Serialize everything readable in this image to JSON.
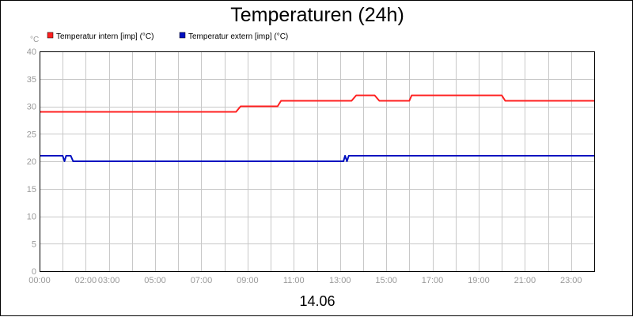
{
  "chart_data": {
    "type": "line",
    "title": "Temperaturen (24h)",
    "date_label": "14.06",
    "y_unit": "°C",
    "ylim": [
      0,
      40
    ],
    "y_ticks": [
      0,
      5,
      10,
      15,
      20,
      25,
      30,
      35,
      40
    ],
    "xlim_hours": [
      0,
      24
    ],
    "x_tick_labels": [
      {
        "hour": 0,
        "label": "00:00"
      },
      {
        "hour": 2,
        "label": "02:00"
      },
      {
        "hour": 3,
        "label": "03:00"
      },
      {
        "hour": 5,
        "label": "05:00"
      },
      {
        "hour": 7,
        "label": "07:00"
      },
      {
        "hour": 9,
        "label": "09:00"
      },
      {
        "hour": 11,
        "label": "11:00"
      },
      {
        "hour": 13,
        "label": "13:00"
      },
      {
        "hour": 15,
        "label": "15:00"
      },
      {
        "hour": 17,
        "label": "17:00"
      },
      {
        "hour": 19,
        "label": "19:00"
      },
      {
        "hour": 21,
        "label": "21:00"
      },
      {
        "hour": 23,
        "label": "23:00"
      }
    ],
    "grid": true,
    "legend_position": "top-left",
    "series": [
      {
        "name": "Temperatur intern [imp] (°C)",
        "color": "#ff2020",
        "x": [
          0,
          8.5,
          8.7,
          10.3,
          10.45,
          13.5,
          13.7,
          14.5,
          14.7,
          16.0,
          16.1,
          20.0,
          20.15,
          24
        ],
        "y": [
          29,
          29,
          30,
          30,
          31,
          31,
          32,
          32,
          31,
          31,
          32,
          32,
          31,
          31
        ]
      },
      {
        "name": "Temperatur extern [imp] (°C)",
        "color": "#0010c0",
        "x": [
          0,
          1.0,
          1.08,
          1.15,
          1.35,
          1.45,
          13.15,
          13.22,
          13.3,
          13.38,
          24
        ],
        "y": [
          21,
          21,
          20,
          21,
          21,
          20,
          20,
          21,
          20,
          21,
          21
        ]
      }
    ]
  }
}
